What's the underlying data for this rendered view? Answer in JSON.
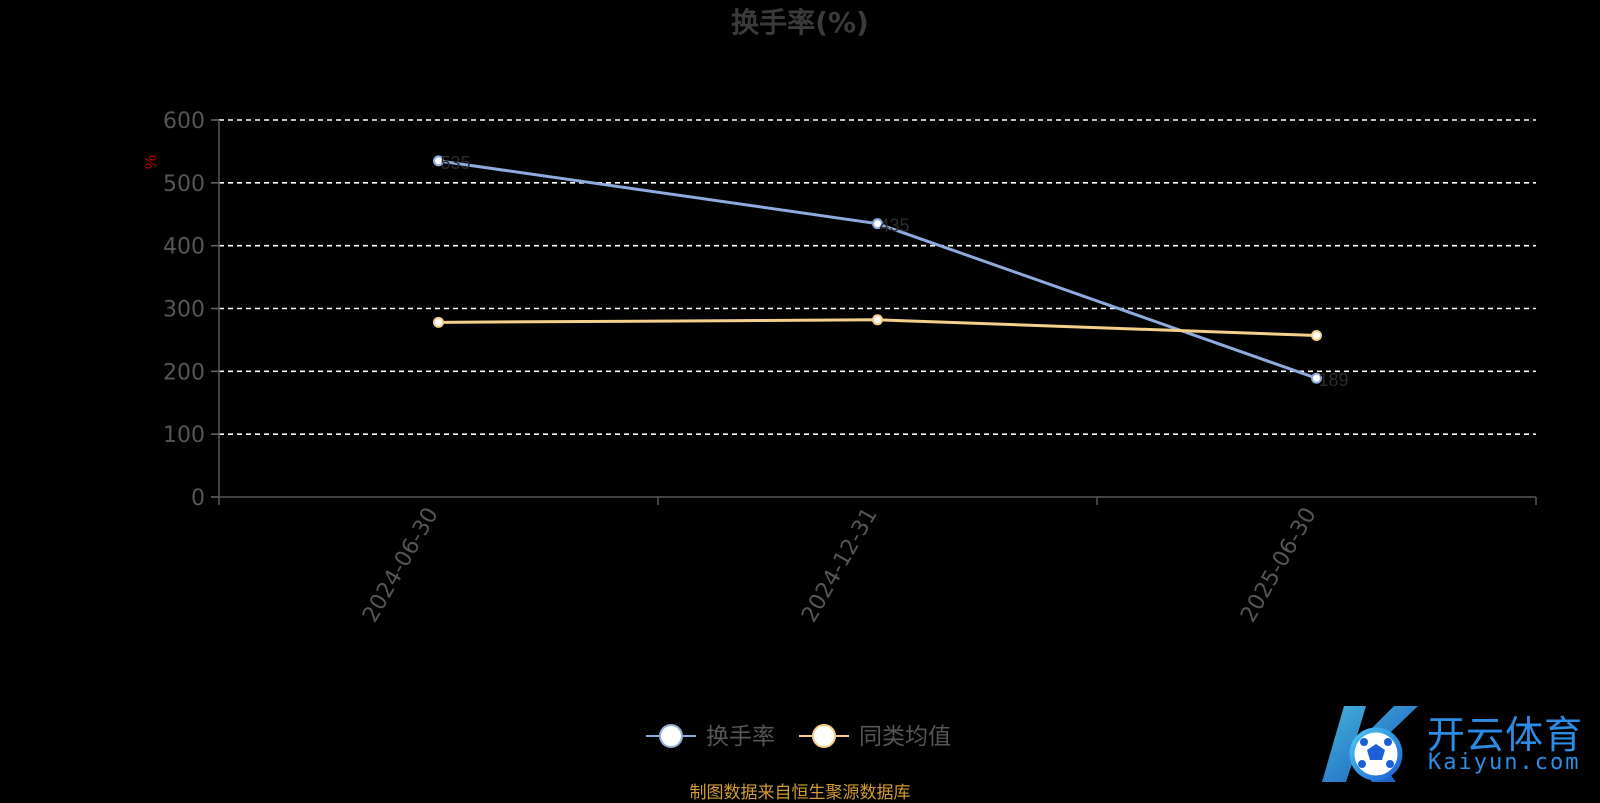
{
  "chart_data": {
    "type": "line",
    "title": "换手率(%)",
    "ylabel": "%",
    "xlabel": "",
    "ylim": [
      0,
      600
    ],
    "yticks": [
      0,
      100,
      200,
      300,
      400,
      500,
      600
    ],
    "categories": [
      "2024-06-30",
      "2024-12-31",
      "2025-06-30"
    ],
    "grid": true,
    "legend_position": "bottom-center",
    "series": [
      {
        "name": "换手率",
        "values": [
          535,
          435,
          189
        ],
        "color": "#8faadc",
        "labels": [
          "535",
          "435",
          "189"
        ]
      },
      {
        "name": "同类均值",
        "values": [
          278,
          282,
          257
        ],
        "color": "#f3cf8a"
      }
    ]
  },
  "footer": {
    "source": "制图数据来自恒生聚源数据库"
  },
  "logo": {
    "cn": "开云体育",
    "en": "Kaiyun.com",
    "mark": "K"
  }
}
